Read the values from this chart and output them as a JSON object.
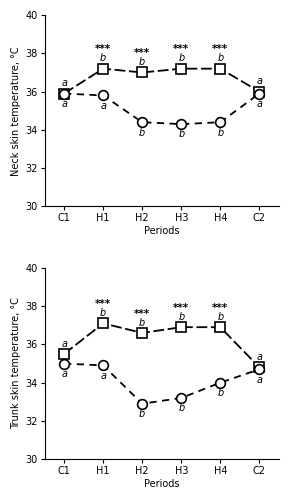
{
  "periods": [
    "C1",
    "H1",
    "H2",
    "H3",
    "H4",
    "C2"
  ],
  "x": [
    0,
    1,
    2,
    3,
    4,
    5
  ],
  "neck_squares": [
    35.9,
    37.2,
    37.0,
    37.2,
    37.2,
    36.0
  ],
  "neck_circles": [
    35.9,
    35.8,
    34.4,
    34.3,
    34.4,
    35.9
  ],
  "trunk_squares": [
    35.5,
    37.1,
    36.6,
    36.9,
    36.9,
    34.8
  ],
  "trunk_circles": [
    35.0,
    34.9,
    32.9,
    33.2,
    34.0,
    34.7
  ],
  "neck_letters_square": [
    "a",
    "b",
    "b",
    "b",
    "b",
    "a"
  ],
  "neck_letters_circle": [
    "a",
    "a",
    "b",
    "b",
    "b",
    "a"
  ],
  "neck_stars": [
    false,
    true,
    true,
    true,
    true,
    false
  ],
  "trunk_letters_square": [
    "a",
    "b",
    "b",
    "b",
    "b",
    "a"
  ],
  "trunk_letters_circle": [
    "a",
    "a",
    "b",
    "b",
    "b",
    "a"
  ],
  "trunk_stars": [
    false,
    true,
    true,
    true,
    true,
    false
  ],
  "ylim": [
    30,
    40
  ],
  "yticks": [
    30,
    32,
    34,
    36,
    38,
    40
  ],
  "neck_ylabel": "Neck skin temperature, °C",
  "trunk_ylabel": "Trunk skin temperature, °C",
  "xlabel": "Periods",
  "fontsize_labels": 7,
  "fontsize_ticks": 7,
  "fontsize_letters": 7,
  "fontsize_stars": 7.5
}
